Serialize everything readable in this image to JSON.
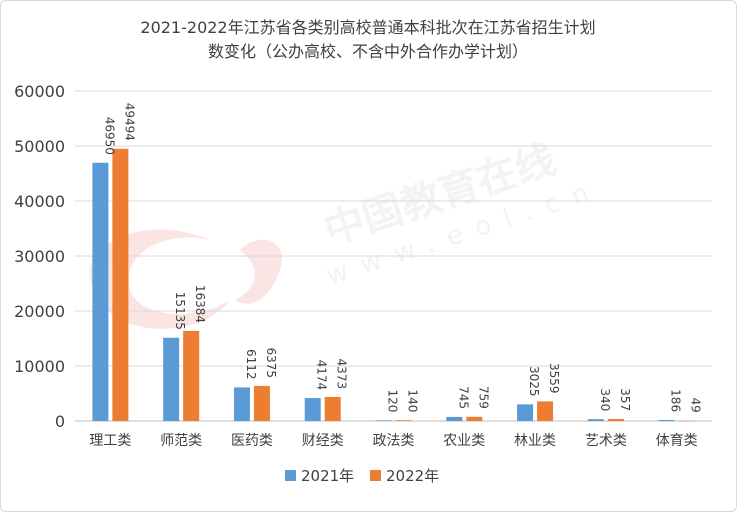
{
  "chart_data": {
    "type": "bar",
    "title_line1": "2021-2022年江苏省各类别高校普通本科批次在江苏省招生计划",
    "title_line2": "数变化（公办高校、不含中外合作办学计划）",
    "categories": [
      "理工类",
      "师范类",
      "医药类",
      "财经类",
      "政法类",
      "农业类",
      "林业类",
      "艺术类",
      "体育类"
    ],
    "series": [
      {
        "name": "2021年",
        "color": "#5b9bd5",
        "values": [
          46950,
          15135,
          6112,
          4174,
          120,
          745,
          3025,
          340,
          186
        ]
      },
      {
        "name": "2022年",
        "color": "#ed7d31",
        "values": [
          49494,
          16384,
          6375,
          4373,
          140,
          759,
          3559,
          357,
          49
        ]
      }
    ],
    "ylim": [
      0,
      60000
    ],
    "yticks": [
      0,
      10000,
      20000,
      30000,
      40000,
      50000,
      60000
    ],
    "grid": true,
    "legend_position": "bottom",
    "watermark": "中国教育在线 www.eol.cn"
  }
}
